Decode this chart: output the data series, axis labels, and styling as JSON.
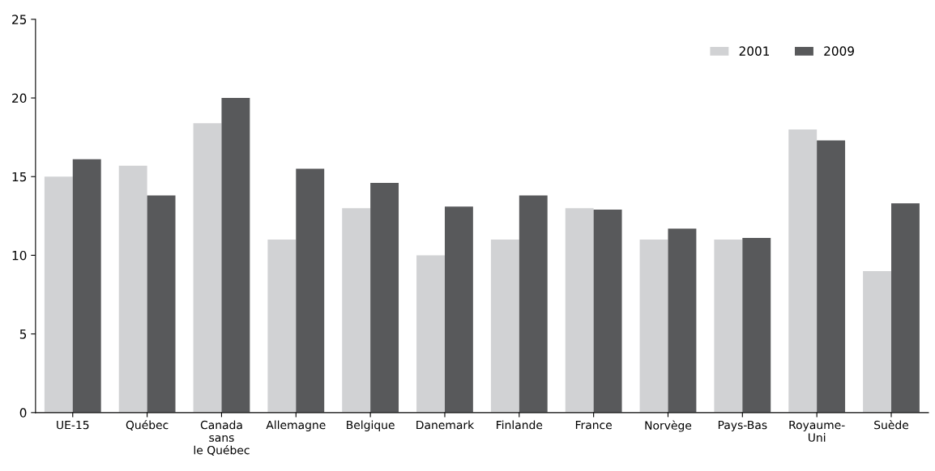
{
  "chart_data": {
    "type": "bar",
    "categories": [
      "UE-15",
      "Québec",
      "Canada\nsans\nle Québec",
      "Allemagne",
      "Belgique",
      "Danemark",
      "Finlande",
      "France",
      "Norvège",
      "Pays-Bas",
      "Royaume-\nUni",
      "Suède"
    ],
    "series": [
      {
        "name": "2001",
        "color": "#d1d2d4",
        "values": [
          15.0,
          15.7,
          18.4,
          11.0,
          13.0,
          10.0,
          11.0,
          13.0,
          11.0,
          11.0,
          18.0,
          9.0
        ]
      },
      {
        "name": "2009",
        "color": "#58595b",
        "values": [
          16.1,
          13.8,
          20.0,
          15.5,
          14.6,
          13.1,
          13.8,
          12.9,
          11.7,
          11.1,
          17.3,
          13.3
        ]
      }
    ],
    "ylim": [
      0,
      25
    ],
    "yticks": [
      0,
      5,
      10,
      15,
      20,
      25
    ],
    "grid": false,
    "legend": "top right"
  }
}
